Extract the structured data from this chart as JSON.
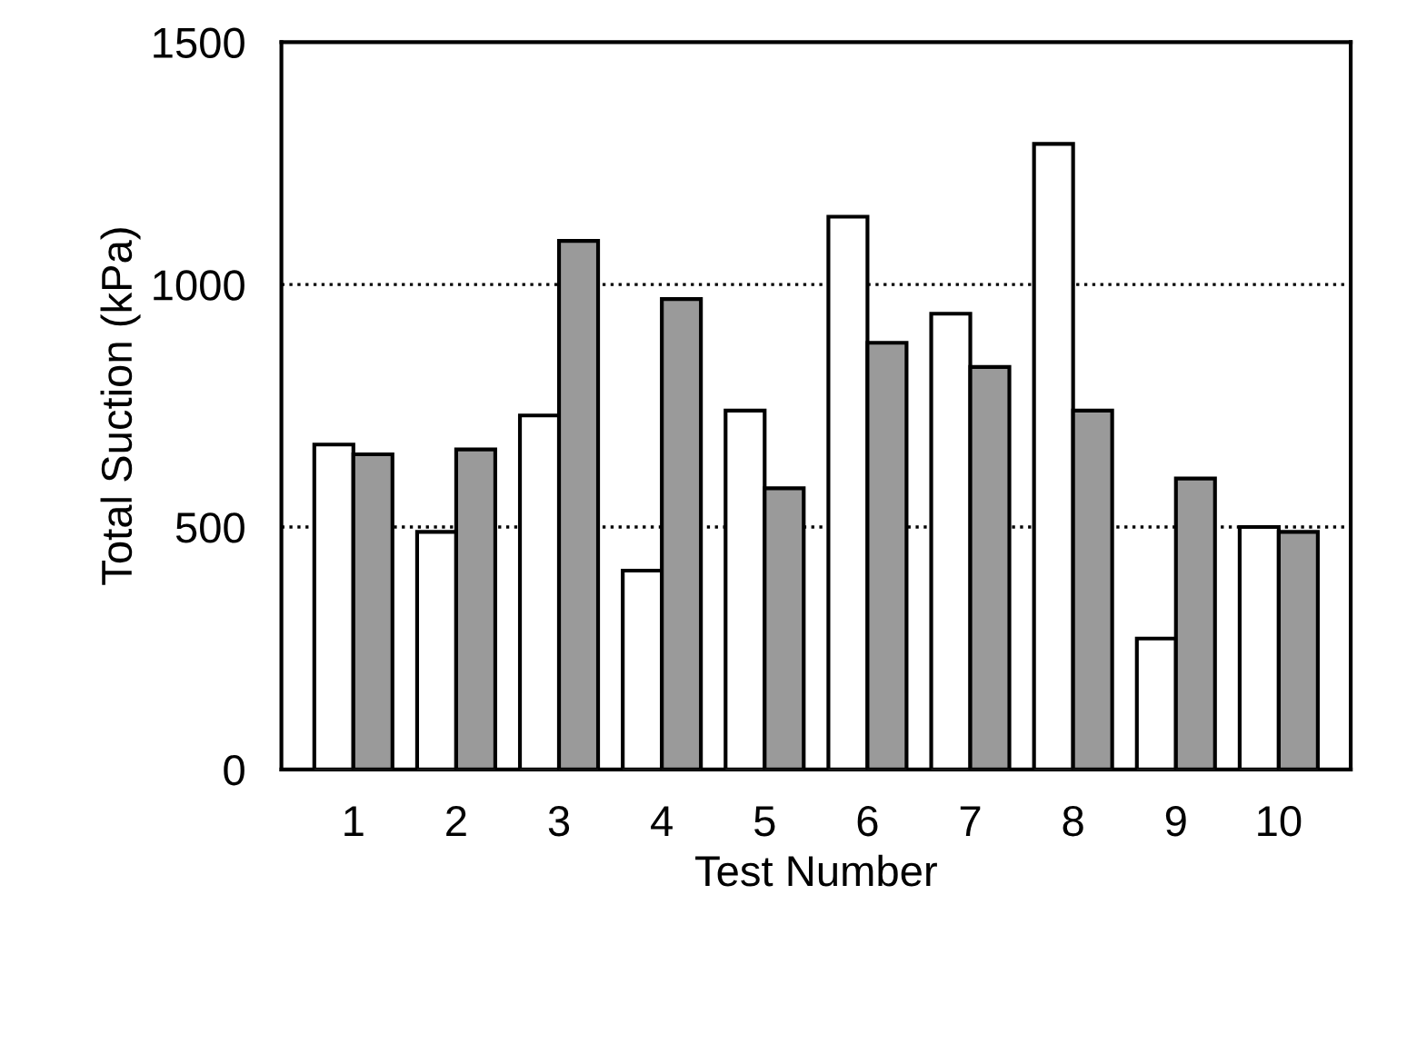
{
  "chart_data": {
    "type": "bar",
    "xlabel": "Test Number",
    "ylabel": "Total Suction (kPa)",
    "categories": [
      "1",
      "2",
      "3",
      "4",
      "5",
      "6",
      "7",
      "8",
      "9",
      "10"
    ],
    "series": [
      {
        "color": "#ffffff",
        "values": [
          670,
          490,
          730,
          410,
          740,
          1140,
          940,
          1290,
          270,
          500
        ]
      },
      {
        "color": "#9a9a9a",
        "values": [
          650,
          660,
          1090,
          970,
          580,
          880,
          830,
          740,
          600,
          490
        ]
      }
    ],
    "ylim": [
      0,
      1500
    ],
    "yticks": [
      0,
      500,
      1000,
      1500
    ],
    "grid": "y",
    "legend": false
  }
}
